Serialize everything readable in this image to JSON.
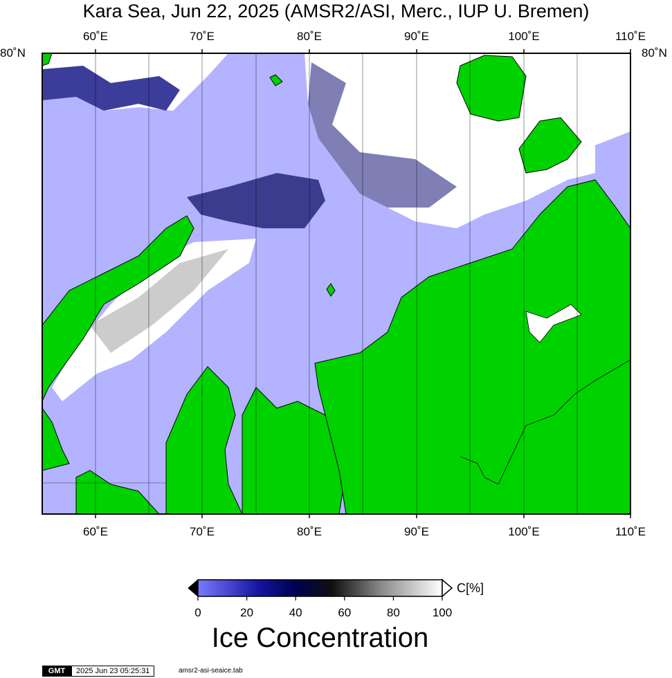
{
  "title": "Kara Sea, Jun 22, 2025 (AMSR2/ASI, Merc., IUP U. Bremen)",
  "map": {
    "lon_labels": [
      "60˚E",
      "70˚E",
      "80˚E",
      "90˚E",
      "100˚E",
      "110˚E"
    ],
    "lat_label": "80˚N",
    "colors": {
      "open_water": "#b3b3ff",
      "land": "#00d200",
      "ice_full": "#ffffff",
      "ice_mid": "#000050"
    }
  },
  "colorbar": {
    "unit": "C[%]",
    "ticks": [
      "0",
      "20",
      "40",
      "60",
      "80",
      "100"
    ],
    "title": "Ice Concentration"
  },
  "footer": {
    "logo": "GMT",
    "timestamp": "2025 Jun 23 05:25:31",
    "file": "amsr2-asi-seaice.tab"
  }
}
